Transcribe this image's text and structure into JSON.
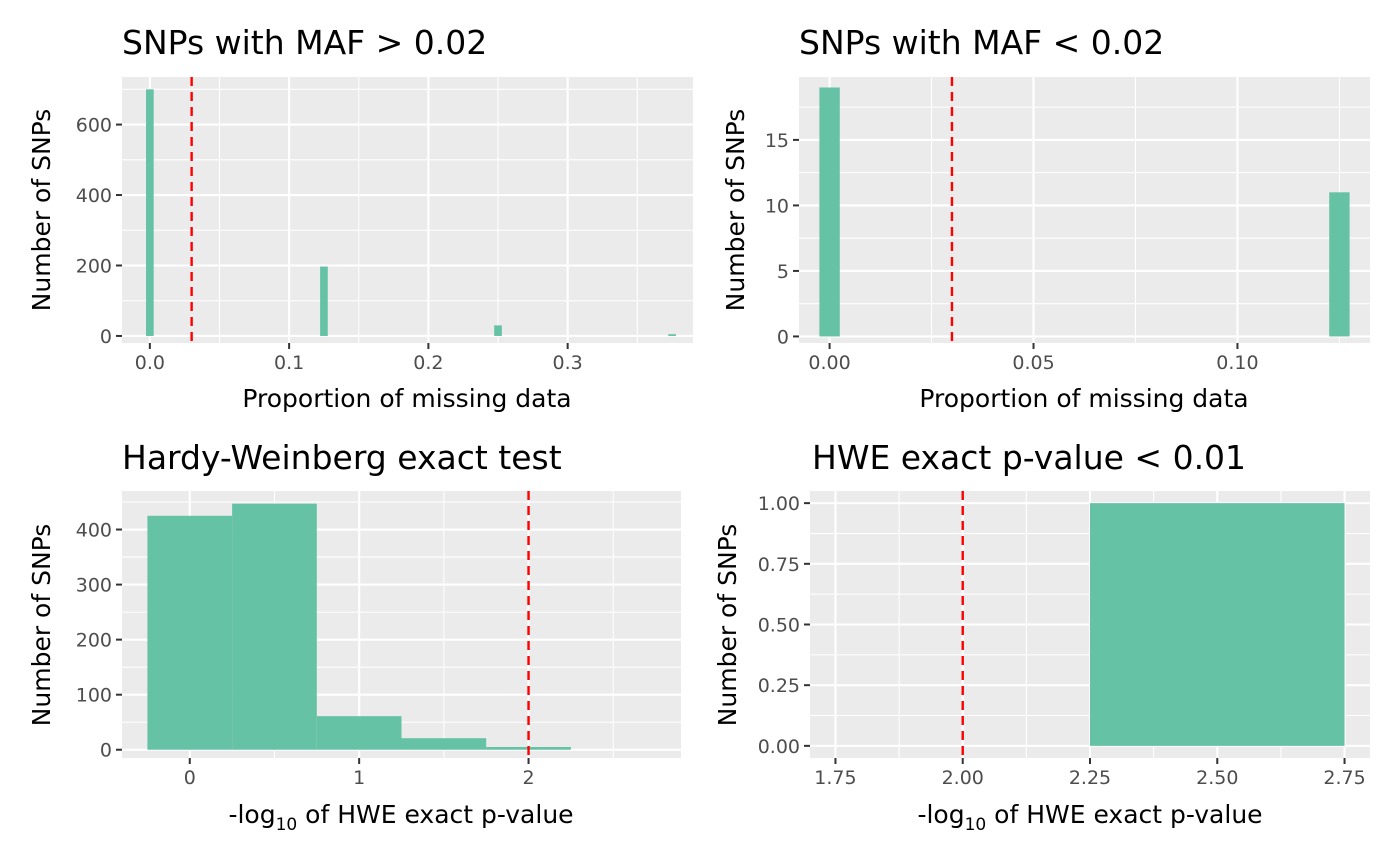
{
  "colors": {
    "bar_fill": "#66c2a5",
    "threshold_line": "#ff0000",
    "panel_background": "#ebebeb",
    "grid": "#ffffff"
  },
  "chart_data": [
    {
      "type": "bar",
      "title": "SNPs with MAF > 0.02",
      "xlabel": "Proportion of missing data",
      "ylabel": "Number of SNPs",
      "xlim": [
        -0.02,
        0.39
      ],
      "ylim": [
        -20,
        735
      ],
      "xticks": [
        0.0,
        0.1,
        0.2,
        0.3
      ],
      "xtick_labels": [
        "0.0",
        "0.1",
        "0.2",
        "0.3"
      ],
      "yticks": [
        0,
        200,
        400,
        600
      ],
      "ytick_labels": [
        "0",
        "200",
        "400",
        "600"
      ],
      "bin_width": 0.0055,
      "bins": [
        {
          "x": 0.0,
          "count": 700
        },
        {
          "x": 0.125,
          "count": 197
        },
        {
          "x": 0.25,
          "count": 30
        },
        {
          "x": 0.375,
          "count": 5
        }
      ],
      "threshold": 0.03,
      "grid": true
    },
    {
      "type": "bar",
      "title": "SNPs with MAF < 0.02",
      "xlabel": "Proportion of missing data",
      "ylabel": "Number of SNPs",
      "xlim": [
        -0.0075,
        0.1325
      ],
      "ylim": [
        -0.5,
        19.8
      ],
      "xticks": [
        0.0,
        0.05,
        0.1
      ],
      "xtick_labels": [
        "0.00",
        "0.05",
        "0.10"
      ],
      "yticks": [
        0,
        5,
        10,
        15
      ],
      "ytick_labels": [
        "0",
        "5",
        "10",
        "15"
      ],
      "bin_width": 0.005,
      "bins": [
        {
          "x": 0.0,
          "count": 19
        },
        {
          "x": 0.125,
          "count": 11
        }
      ],
      "threshold": 0.03,
      "grid": true
    },
    {
      "type": "bar",
      "title": "Hardy-Weinberg exact test",
      "xlabel_parts": [
        "-log",
        "10",
        " of HWE exact p-value"
      ],
      "ylabel": "Number of SNPs",
      "xlim": [
        -0.4,
        2.9
      ],
      "ylim": [
        -15,
        470
      ],
      "xticks": [
        0,
        1,
        2
      ],
      "xtick_labels": [
        "0",
        "1",
        "2"
      ],
      "yticks": [
        0,
        100,
        200,
        300,
        400
      ],
      "ytick_labels": [
        "0",
        "100",
        "200",
        "300",
        "400"
      ],
      "bin_width": 0.5,
      "bins": [
        {
          "x": 0.0,
          "count": 425
        },
        {
          "x": 0.5,
          "count": 447
        },
        {
          "x": 1.0,
          "count": 61
        },
        {
          "x": 1.5,
          "count": 21
        },
        {
          "x": 2.0,
          "count": 5
        }
      ],
      "threshold": 2,
      "grid": true
    },
    {
      "type": "bar",
      "title": "HWE exact p-value < 0.01",
      "xlabel_parts": [
        "-log",
        "10",
        " of HWE exact p-value"
      ],
      "ylabel": "Number of SNPs",
      "xlim": [
        1.7,
        2.8
      ],
      "ylim": [
        -0.05,
        1.05
      ],
      "xticks": [
        1.75,
        2.0,
        2.25,
        2.5,
        2.75
      ],
      "xtick_labels": [
        "1.75",
        "2.00",
        "2.25",
        "2.50",
        "2.75"
      ],
      "yticks": [
        0,
        0.25,
        0.5,
        0.75,
        1.0
      ],
      "ytick_labels": [
        "0.00",
        "0.25",
        "0.50",
        "0.75",
        "1.00"
      ],
      "bin_width": 0.5,
      "bins": [
        {
          "x": 2.5,
          "count": 1
        }
      ],
      "threshold": 2,
      "grid": true
    }
  ]
}
